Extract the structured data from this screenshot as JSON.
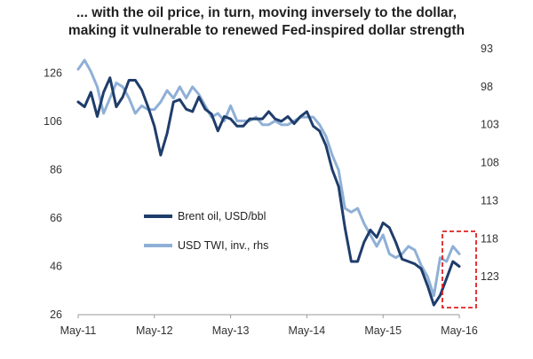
{
  "chart_data": {
    "type": "line",
    "title": "... with the oil price, in turn, moving inversely to the dollar,",
    "subtitle": "making it vulnerable to renewed Fed-inspired dollar strength",
    "xlabel": "",
    "ylabel": "",
    "x_ticks": [
      "May-11",
      "May-12",
      "May-13",
      "May-14",
      "May-15",
      "May-16"
    ],
    "x_range": [
      0,
      60
    ],
    "left_axis": {
      "ticks": [
        126,
        106,
        86,
        66,
        46,
        26
      ],
      "range": [
        26,
        136
      ]
    },
    "right_axis": {
      "ticks": [
        93,
        98,
        103,
        108,
        113,
        118,
        123
      ],
      "range": [
        93,
        128
      ],
      "inverted": true
    },
    "legend": {
      "position": "center-left",
      "entries": [
        "Brent oil, USD/bbl",
        "USD TWI, inv., rhs"
      ]
    },
    "colors": {
      "brent": "#1f3d6b",
      "twi": "#8fb0d6",
      "highlight": "#e02020",
      "axis": "#999999"
    },
    "series": [
      {
        "name": "Brent oil, USD/bbl",
        "axis": "left",
        "x": [
          0,
          1,
          2,
          3,
          4,
          5,
          6,
          7,
          8,
          9,
          10,
          11,
          12,
          13,
          14,
          15,
          16,
          17,
          18,
          19,
          20,
          21,
          22,
          23,
          24,
          25,
          26,
          27,
          28,
          29,
          30,
          31,
          32,
          33,
          34,
          35,
          36,
          37,
          38,
          39,
          40,
          41,
          42,
          43,
          44,
          45,
          46,
          47,
          48,
          49,
          50,
          51,
          52,
          53,
          54,
          55,
          56,
          57,
          58,
          59,
          60
        ],
        "values": [
          114,
          112,
          118,
          108,
          118,
          124,
          112,
          116,
          123,
          123,
          119,
          112,
          104,
          92,
          101,
          114,
          115,
          111,
          110,
          116,
          111,
          109,
          102,
          108,
          107,
          104,
          104,
          107,
          107,
          107,
          110,
          107,
          106,
          108,
          105,
          108,
          110,
          104,
          102,
          96,
          86,
          79,
          62,
          48,
          48,
          56,
          61,
          58,
          64,
          62,
          56,
          49,
          48,
          47,
          45,
          38,
          30,
          34,
          41,
          48,
          46
        ]
      },
      {
        "name": "USD TWI, inv., rhs",
        "axis": "right",
        "x": [
          0,
          1,
          2,
          3,
          4,
          5,
          6,
          7,
          8,
          9,
          10,
          11,
          12,
          13,
          14,
          15,
          16,
          17,
          18,
          19,
          20,
          21,
          22,
          23,
          24,
          25,
          26,
          27,
          28,
          29,
          30,
          31,
          32,
          33,
          34,
          35,
          36,
          37,
          38,
          39,
          40,
          41,
          42,
          43,
          44,
          45,
          46,
          47,
          48,
          49,
          50,
          51,
          52,
          53,
          54,
          55,
          56,
          57,
          58,
          59,
          60
        ],
        "values": [
          95.7,
          94.5,
          96,
          98,
          101.5,
          99.5,
          97.5,
          98,
          99.5,
          101.5,
          100.5,
          101,
          101,
          100,
          98.5,
          99.5,
          98,
          99.5,
          98,
          99,
          100.5,
          102,
          101.5,
          102.5,
          100.5,
          102.5,
          102.5,
          102.5,
          102,
          103,
          103,
          102.5,
          103,
          103,
          102.5,
          102,
          102,
          102,
          103,
          104.5,
          107,
          109,
          114,
          114.5,
          114,
          116,
          117.5,
          119,
          117.5,
          120,
          120.5,
          120,
          119,
          119.5,
          121.5,
          123,
          125.5,
          120.5,
          121,
          119,
          120
        ]
      }
    ]
  }
}
